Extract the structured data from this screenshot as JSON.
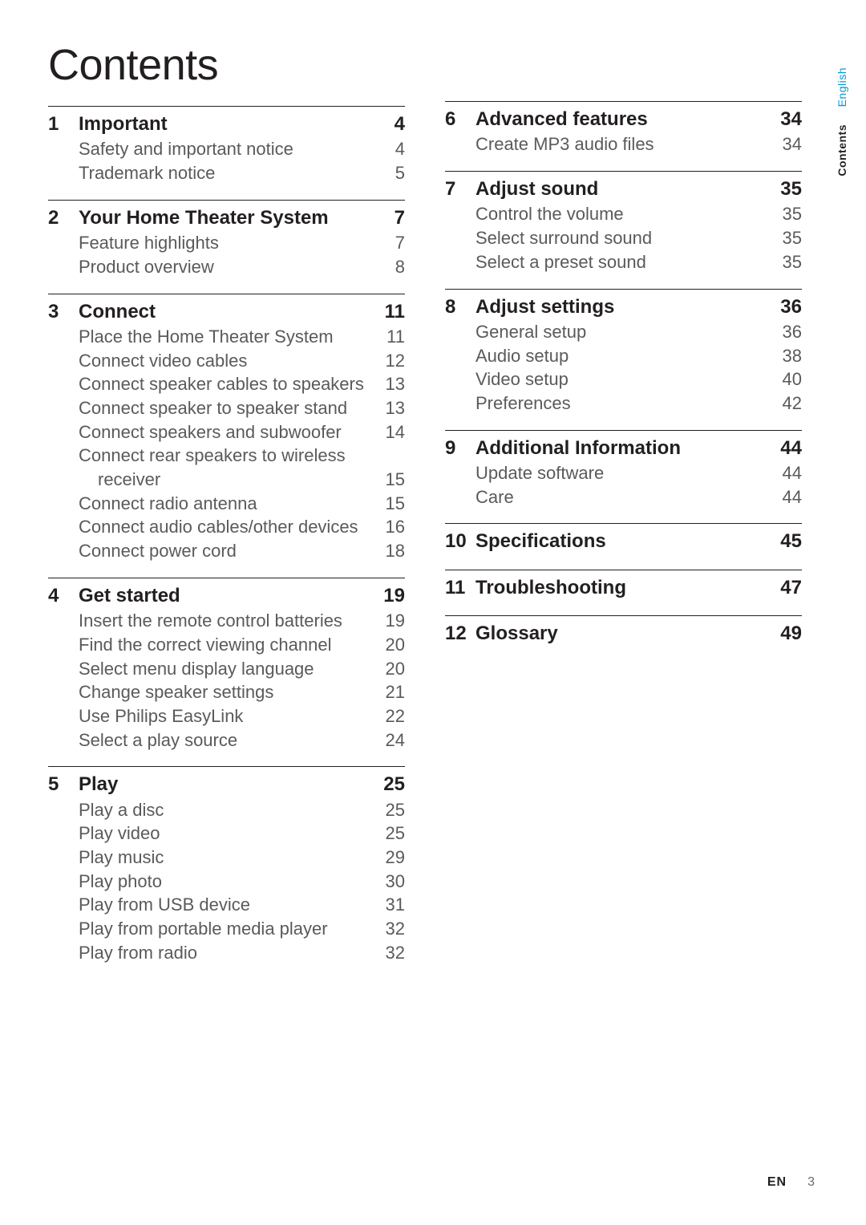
{
  "title": "Contents",
  "side_tabs": {
    "language": "English",
    "section": "Contents"
  },
  "footer": {
    "lang_code": "EN",
    "page_number": "3"
  },
  "colors": {
    "text": "#231f20",
    "subtext": "#5a5a5a",
    "accent": "#0099d8",
    "rule": "#231f20",
    "background": "#ffffff"
  },
  "typography": {
    "title_fontsize": 54,
    "head_fontsize": 24,
    "sub_fontsize": 22,
    "sidetab_fontsize": 14,
    "footer_fontsize": 16
  },
  "left_sections": [
    {
      "num": "1",
      "label": "Important",
      "page": "4",
      "items": [
        {
          "label": "Safety and important notice",
          "page": "4"
        },
        {
          "label": "Trademark notice",
          "page": "5"
        }
      ]
    },
    {
      "num": "2",
      "label": "Your Home Theater System",
      "page": "7",
      "items": [
        {
          "label": "Feature highlights",
          "page": "7"
        },
        {
          "label": "Product overview",
          "page": "8"
        }
      ]
    },
    {
      "num": "3",
      "label": "Connect",
      "page": "11",
      "items": [
        {
          "label": "Place the Home Theater System",
          "page": "11"
        },
        {
          "label": "Connect video cables",
          "page": "12"
        },
        {
          "label": "Connect speaker cables to speakers",
          "page": "13"
        },
        {
          "label": "Connect speaker to speaker stand",
          "page": "13"
        },
        {
          "label": "Connect speakers and subwoofer",
          "page": "14"
        },
        {
          "label": "Connect rear speakers to wireless",
          "page": ""
        },
        {
          "label": "receiver",
          "page": "15",
          "indent": true
        },
        {
          "label": "Connect radio antenna",
          "page": "15"
        },
        {
          "label": "Connect audio cables/other devices",
          "page": "16"
        },
        {
          "label": "Connect power cord",
          "page": "18"
        }
      ]
    },
    {
      "num": "4",
      "label": "Get started",
      "page": "19",
      "items": [
        {
          "label": "Insert the remote control batteries",
          "page": "19"
        },
        {
          "label": "Find the correct viewing channel",
          "page": "20"
        },
        {
          "label": "Select menu display language",
          "page": "20"
        },
        {
          "label": "Change speaker settings",
          "page": "21"
        },
        {
          "label": "Use Philips EasyLink",
          "page": "22"
        },
        {
          "label": "Select a play source",
          "page": "24"
        }
      ]
    },
    {
      "num": "5",
      "label": "Play",
      "page": "25",
      "items": [
        {
          "label": "Play a disc",
          "page": "25"
        },
        {
          "label": "Play video",
          "page": "25"
        },
        {
          "label": "Play music",
          "page": "29"
        },
        {
          "label": "Play photo",
          "page": "30"
        },
        {
          "label": "Play from USB device",
          "page": "31"
        },
        {
          "label": "Play from portable media player",
          "page": "32"
        },
        {
          "label": "Play from radio",
          "page": "32"
        }
      ]
    }
  ],
  "right_sections": [
    {
      "num": "6",
      "label": "Advanced features",
      "page": "34",
      "items": [
        {
          "label": "Create MP3 audio files",
          "page": "34"
        }
      ]
    },
    {
      "num": "7",
      "label": "Adjust sound",
      "page": "35",
      "items": [
        {
          "label": "Control the volume",
          "page": "35"
        },
        {
          "label": "Select surround sound",
          "page": "35"
        },
        {
          "label": "Select a preset sound",
          "page": "35"
        }
      ]
    },
    {
      "num": "8",
      "label": "Adjust settings",
      "page": "36",
      "items": [
        {
          "label": "General setup",
          "page": "36"
        },
        {
          "label": "Audio setup",
          "page": "38"
        },
        {
          "label": "Video setup",
          "page": "40"
        },
        {
          "label": "Preferences",
          "page": "42"
        }
      ]
    },
    {
      "num": "9",
      "label": "Additional Information",
      "page": "44",
      "items": [
        {
          "label": "Update software",
          "page": "44"
        },
        {
          "label": "Care",
          "page": "44"
        }
      ]
    },
    {
      "num": "10",
      "label": "Specifications",
      "page": "45",
      "items": []
    },
    {
      "num": "11",
      "label": "Troubleshooting",
      "page": "47",
      "items": []
    },
    {
      "num": "12",
      "label": "Glossary",
      "page": "49",
      "items": []
    }
  ]
}
